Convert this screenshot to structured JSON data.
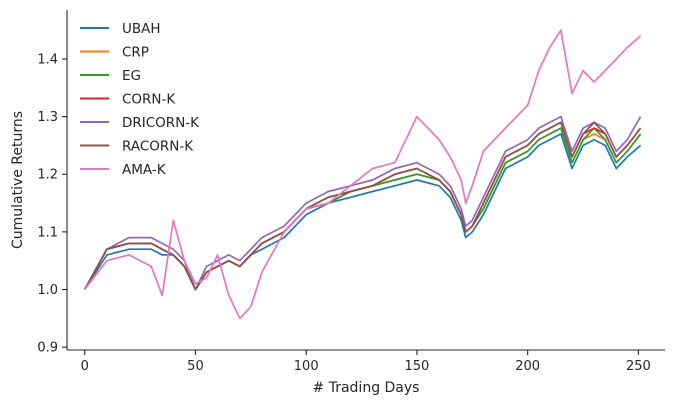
{
  "chart_data": {
    "type": "line",
    "title": "",
    "xlabel": "# Trading Days",
    "ylabel": "Cumulative Returns",
    "xlim": [
      -8,
      262
    ],
    "ylim": [
      0.895,
      1.485
    ],
    "xticks": [
      0,
      50,
      100,
      150,
      200,
      250
    ],
    "yticks": [
      0.9,
      1.0,
      1.1,
      1.2,
      1.3,
      1.4
    ],
    "grid": false,
    "legend": "top-left",
    "x": [
      0,
      10,
      20,
      30,
      35,
      40,
      45,
      50,
      55,
      60,
      65,
      70,
      75,
      80,
      90,
      100,
      110,
      120,
      130,
      140,
      150,
      160,
      165,
      170,
      172,
      175,
      180,
      190,
      200,
      205,
      210,
      215,
      220,
      225,
      230,
      235,
      240,
      245,
      251
    ],
    "series": [
      {
        "name": "UBAH",
        "color": "#1f77b4",
        "values": [
          1.0,
          1.06,
          1.07,
          1.07,
          1.06,
          1.06,
          1.04,
          1.0,
          1.03,
          1.04,
          1.05,
          1.04,
          1.06,
          1.07,
          1.09,
          1.13,
          1.15,
          1.16,
          1.17,
          1.18,
          1.19,
          1.18,
          1.16,
          1.12,
          1.09,
          1.1,
          1.13,
          1.21,
          1.23,
          1.25,
          1.26,
          1.27,
          1.21,
          1.25,
          1.26,
          1.25,
          1.21,
          1.23,
          1.25
        ]
      },
      {
        "name": "CRP",
        "color": "#ff7f0e",
        "values": [
          1.0,
          1.07,
          1.08,
          1.08,
          1.07,
          1.06,
          1.04,
          1.0,
          1.03,
          1.04,
          1.05,
          1.04,
          1.06,
          1.08,
          1.1,
          1.14,
          1.15,
          1.17,
          1.18,
          1.19,
          1.2,
          1.19,
          1.17,
          1.13,
          1.1,
          1.11,
          1.14,
          1.22,
          1.24,
          1.26,
          1.27,
          1.28,
          1.22,
          1.26,
          1.27,
          1.26,
          1.22,
          1.24,
          1.27
        ]
      },
      {
        "name": "EG",
        "color": "#2ca02c",
        "values": [
          1.0,
          1.07,
          1.08,
          1.08,
          1.07,
          1.06,
          1.04,
          1.0,
          1.03,
          1.04,
          1.05,
          1.04,
          1.06,
          1.08,
          1.1,
          1.14,
          1.15,
          1.17,
          1.18,
          1.19,
          1.2,
          1.19,
          1.17,
          1.13,
          1.1,
          1.11,
          1.14,
          1.22,
          1.24,
          1.26,
          1.27,
          1.28,
          1.22,
          1.26,
          1.28,
          1.26,
          1.22,
          1.24,
          1.27
        ]
      },
      {
        "name": "CORN-K",
        "color": "#d62728",
        "values": [
          1.0,
          1.07,
          1.08,
          1.08,
          1.07,
          1.06,
          1.04,
          1.0,
          1.03,
          1.04,
          1.05,
          1.04,
          1.06,
          1.08,
          1.1,
          1.14,
          1.16,
          1.17,
          1.18,
          1.2,
          1.21,
          1.19,
          1.17,
          1.13,
          1.1,
          1.11,
          1.15,
          1.23,
          1.25,
          1.27,
          1.28,
          1.29,
          1.23,
          1.27,
          1.28,
          1.27,
          1.23,
          1.25,
          1.28
        ]
      },
      {
        "name": "DRICORN-K",
        "color": "#9467bd",
        "values": [
          1.0,
          1.07,
          1.09,
          1.09,
          1.08,
          1.07,
          1.05,
          1.0,
          1.04,
          1.05,
          1.06,
          1.05,
          1.07,
          1.09,
          1.11,
          1.15,
          1.17,
          1.18,
          1.19,
          1.21,
          1.22,
          1.2,
          1.18,
          1.14,
          1.11,
          1.12,
          1.16,
          1.24,
          1.26,
          1.28,
          1.29,
          1.3,
          1.24,
          1.28,
          1.29,
          1.28,
          1.24,
          1.26,
          1.3
        ]
      },
      {
        "name": "RACORN-K",
        "color": "#8c564b",
        "values": [
          1.0,
          1.07,
          1.08,
          1.08,
          1.07,
          1.06,
          1.04,
          1.0,
          1.03,
          1.04,
          1.05,
          1.04,
          1.06,
          1.08,
          1.1,
          1.14,
          1.16,
          1.17,
          1.18,
          1.2,
          1.21,
          1.19,
          1.17,
          1.13,
          1.1,
          1.11,
          1.15,
          1.23,
          1.25,
          1.27,
          1.28,
          1.29,
          1.23,
          1.27,
          1.29,
          1.27,
          1.23,
          1.25,
          1.28
        ]
      },
      {
        "name": "AMA-K",
        "color": "#e377c2",
        "values": [
          1.0,
          1.05,
          1.06,
          1.04,
          0.99,
          1.12,
          1.05,
          1.01,
          1.02,
          1.06,
          0.99,
          0.95,
          0.97,
          1.03,
          1.1,
          1.14,
          1.15,
          1.18,
          1.21,
          1.22,
          1.3,
          1.26,
          1.23,
          1.19,
          1.15,
          1.18,
          1.24,
          1.28,
          1.32,
          1.38,
          1.42,
          1.45,
          1.34,
          1.38,
          1.36,
          1.38,
          1.4,
          1.42,
          1.44
        ]
      }
    ]
  }
}
